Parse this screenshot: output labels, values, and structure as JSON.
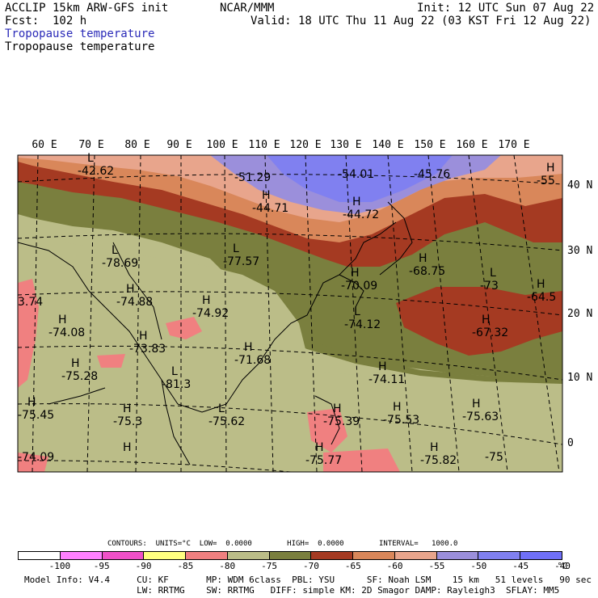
{
  "header": {
    "model": "ACCLIP 15km ARW-GFS init",
    "org": "NCAR/MMM",
    "init": "Init: 12 UTC Sun 07 Aug 22",
    "fcst": "Fcst:  102 h",
    "valid": "Valid: 18 UTC Thu 11 Aug 22 (03 KST Fri 12 Aug 22)",
    "field_title_1": "Tropopause temperature",
    "field_title_2": "Tropopause temperature"
  },
  "longitude_labels": [
    "60 E",
    "70 E",
    "80 E",
    "90 E",
    "100 E",
    "110 E",
    "120 E",
    "130 E",
    "140 E",
    "150 E",
    "160 E",
    "170 E"
  ],
  "latitude_labels": [
    "40 N",
    "30 N",
    "20 N",
    "10 N",
    "0"
  ],
  "map_labels": [
    {
      "mark": "L",
      "value": "-42.62"
    },
    {
      "mark": "",
      "value": "-51.29"
    },
    {
      "mark": "",
      "value": "-54.01"
    },
    {
      "mark": "",
      "value": "-45.76"
    },
    {
      "mark": "H",
      "value": "-55"
    },
    {
      "mark": "H",
      "value": "-44.71"
    },
    {
      "mark": "H",
      "value": "-44.72"
    },
    {
      "mark": "L",
      "value": "-78.69"
    },
    {
      "mark": "L",
      "value": "-77.57"
    },
    {
      "mark": "H",
      "value": "-68.75"
    },
    {
      "mark": "",
      "value": "3.74"
    },
    {
      "mark": "H",
      "value": "-74.88"
    },
    {
      "mark": "H",
      "value": "-74.92"
    },
    {
      "mark": "H",
      "value": "-70.09"
    },
    {
      "mark": "L",
      "value": "-73"
    },
    {
      "mark": "H",
      "value": "-64.5"
    },
    {
      "mark": "H",
      "value": "-74.08"
    },
    {
      "mark": "H",
      "value": "-73.83"
    },
    {
      "mark": "L",
      "value": "-74.12"
    },
    {
      "mark": "H",
      "value": "-67.32"
    },
    {
      "mark": "H",
      "value": "-71.68"
    },
    {
      "mark": "H",
      "value": "-75.28"
    },
    {
      "mark": "L",
      "value": "-81.3"
    },
    {
      "mark": "H",
      "value": "-74.11"
    },
    {
      "mark": "H",
      "value": "-75.45"
    },
    {
      "mark": "H",
      "value": "-75.3"
    },
    {
      "mark": "L",
      "value": "-75.62"
    },
    {
      "mark": "H",
      "value": "-75.39"
    },
    {
      "mark": "H",
      "value": "-75.53"
    },
    {
      "mark": "H",
      "value": "-75.63"
    },
    {
      "mark": "",
      "value": "-74.09"
    },
    {
      "mark": "H",
      "value": ""
    },
    {
      "mark": "H",
      "value": "-75.77"
    },
    {
      "mark": "H",
      "value": "-75.82"
    },
    {
      "mark": "",
      "value": "-75"
    }
  ],
  "colors": {
    "purple_cold": "#9b8fdb",
    "blue_cold": "#8080f0",
    "salmon": "#e8a58c",
    "orange": "#d9875a",
    "dark_red": "#a53a22",
    "olive_dark": "#7a7f3e",
    "olive": "#bbbd88",
    "pink": "#f08080"
  },
  "contour_info": "CONTOURS:  UNITS=°C  LOW=  0.0000        HIGH=  0.0000        INTERVAL=   1000.0",
  "colorbar": {
    "colors": [
      "#ffffff",
      "#ff80ff",
      "#f050c8",
      "#ffff80",
      "#f08080",
      "#bbbd88",
      "#7a7f3e",
      "#a53a22",
      "#d9875a",
      "#e8a58c",
      "#9b8fdb",
      "#8080f0",
      "#7070f8"
    ],
    "ticks": [
      "-100",
      "-95",
      "-90",
      "-85",
      "-80",
      "-75",
      "-70",
      "-65",
      "-60",
      "-55",
      "-50",
      "-45",
      "-40"
    ],
    "unit": "°C"
  },
  "footer": {
    "line1": "Model Info: V4.4     CU: KF       MP: WDM 6class  PBL: YSU      SF: Noah LSM    15 km   51 levels   90 sec",
    "line2": "                     LW: RRTMG    SW: RRTMG   DIFF: simple KM: 2D Smagor DAMP: Rayleigh3  SFLAY: MM5"
  }
}
